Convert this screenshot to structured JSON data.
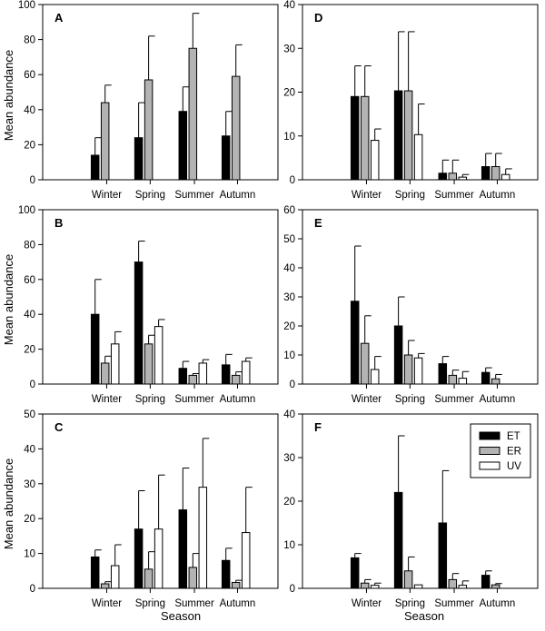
{
  "figure": {
    "ylabel": "Mean abundance",
    "xlabel": "Season"
  },
  "colors": {
    "ET": "#000000",
    "ER": "#b3b3b3",
    "UV": "#ffffff",
    "axis": "#000000"
  },
  "legend": {
    "items": [
      "ET",
      "ER",
      "UV"
    ]
  },
  "chart_data": [
    {
      "type": "bar",
      "panel": "A",
      "categories": [
        "Winter",
        "Spring",
        "Summer",
        "Autumn"
      ],
      "ylim": [
        0,
        100
      ],
      "yticks": [
        0,
        20,
        40,
        60,
        80,
        100
      ],
      "series": [
        {
          "name": "ET",
          "values": [
            14,
            24,
            39,
            25
          ],
          "errors": [
            10,
            20,
            14,
            14
          ]
        },
        {
          "name": "ER",
          "values": [
            44,
            57,
            75,
            59
          ],
          "errors": [
            10,
            25,
            20,
            18
          ]
        }
      ]
    },
    {
      "type": "bar",
      "panel": "B",
      "categories": [
        "Winter",
        "Spring",
        "Summer",
        "Autumn"
      ],
      "ylim": [
        0,
        100
      ],
      "yticks": [
        0,
        20,
        40,
        60,
        80,
        100
      ],
      "series": [
        {
          "name": "ET",
          "values": [
            40,
            70,
            9,
            11
          ],
          "errors": [
            20,
            12,
            4,
            6
          ]
        },
        {
          "name": "ER",
          "values": [
            12,
            23,
            5,
            5
          ],
          "errors": [
            4,
            5,
            1,
            2
          ]
        },
        {
          "name": "UV",
          "values": [
            23,
            33,
            12,
            13
          ],
          "errors": [
            7,
            4,
            2,
            2
          ]
        }
      ]
    },
    {
      "type": "bar",
      "panel": "C",
      "categories": [
        "Winter",
        "Spring",
        "Summer",
        "Autumn"
      ],
      "ylim": [
        0,
        50
      ],
      "yticks": [
        0,
        10,
        20,
        30,
        40,
        50
      ],
      "series": [
        {
          "name": "ET",
          "values": [
            9,
            17,
            22.5,
            8
          ],
          "errors": [
            2,
            11,
            12,
            3.5
          ]
        },
        {
          "name": "ER",
          "values": [
            1.3,
            5.5,
            6,
            1.7
          ],
          "errors": [
            0.6,
            5,
            4,
            0.6
          ]
        },
        {
          "name": "UV",
          "values": [
            6.5,
            17,
            29,
            16
          ],
          "errors": [
            6,
            15.5,
            14,
            13
          ]
        }
      ]
    },
    {
      "type": "bar",
      "panel": "D",
      "categories": [
        "Winter",
        "Spring",
        "Summer",
        "Autumn"
      ],
      "ylim": [
        0,
        40
      ],
      "yticks": [
        0,
        10,
        20,
        30,
        40
      ],
      "series": [
        {
          "name": "ET",
          "values": [
            19,
            20.3,
            1.5,
            3
          ],
          "errors": [
            7,
            13.5,
            3,
            3
          ]
        },
        {
          "name": "ER",
          "values": [
            19,
            20.3,
            1.5,
            3
          ],
          "errors": [
            7,
            13.5,
            3,
            3
          ]
        },
        {
          "name": "UV",
          "values": [
            9,
            10.3,
            0.6,
            1.2
          ],
          "errors": [
            2.6,
            7,
            0.6,
            1.3
          ]
        }
      ]
    },
    {
      "type": "bar",
      "panel": "E",
      "categories": [
        "Winter",
        "Spring",
        "Summer",
        "Autumn"
      ],
      "ylim": [
        0,
        60
      ],
      "yticks": [
        0,
        10,
        20,
        30,
        40,
        50,
        60
      ],
      "series": [
        {
          "name": "ET",
          "values": [
            28.5,
            20,
            7,
            4
          ],
          "errors": [
            19,
            10,
            2.5,
            1.6
          ]
        },
        {
          "name": "ER",
          "values": [
            14,
            10,
            3,
            1.8
          ],
          "errors": [
            9.5,
            5,
            1.8,
            1.5
          ]
        },
        {
          "name": "UV",
          "values": [
            5,
            9,
            2,
            0
          ],
          "errors": [
            4.5,
            1.5,
            2.3,
            0
          ]
        }
      ]
    },
    {
      "type": "bar",
      "panel": "F",
      "categories": [
        "Winter",
        "Spring",
        "Summer",
        "Autumn"
      ],
      "ylim": [
        0,
        40
      ],
      "yticks": [
        0,
        10,
        20,
        30,
        40
      ],
      "series": [
        {
          "name": "ET",
          "values": [
            7,
            22,
            15,
            3
          ],
          "errors": [
            1,
            13,
            12,
            1
          ]
        },
        {
          "name": "ER",
          "values": [
            1.2,
            4,
            2,
            0.8
          ],
          "errors": [
            0.8,
            3.2,
            1.4,
            0.3
          ]
        },
        {
          "name": "UV",
          "values": [
            0.7,
            0.8,
            0.7,
            0
          ],
          "errors": [
            0.5,
            0,
            1,
            0
          ]
        }
      ]
    }
  ]
}
